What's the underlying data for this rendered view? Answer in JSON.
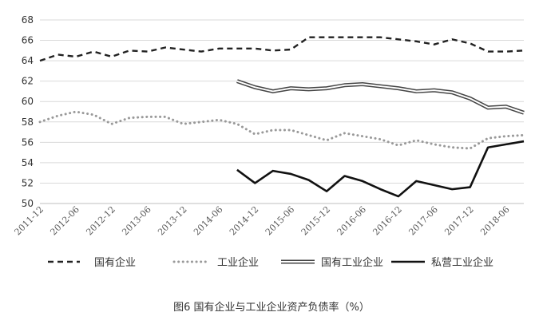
{
  "chart_data": {
    "type": "line",
    "title": "",
    "caption": "图6  国有企业与工业企业资产负债率（%）",
    "xlabel": "",
    "ylabel": "",
    "ylim": [
      50,
      68
    ],
    "yticks": [
      "50",
      "52",
      "54",
      "56",
      "58",
      "60",
      "62",
      "64",
      "66",
      "68"
    ],
    "x": [
      "2011-12",
      "2012-03",
      "2012-06",
      "2012-09",
      "2012-12",
      "2013-03",
      "2013-06",
      "2013-09",
      "2013-12",
      "2014-03",
      "2014-06",
      "2014-09",
      "2014-12",
      "2015-03",
      "2015-06",
      "2015-09",
      "2015-12",
      "2016-03",
      "2016-06",
      "2016-09",
      "2016-12",
      "2017-03",
      "2017-06",
      "2017-09",
      "2017-12",
      "2018-03",
      "2018-06",
      "2018-09"
    ],
    "xtick_labels": [
      "2011-12",
      "2012-06",
      "2012-12",
      "2013-06",
      "2013-12",
      "2014-06",
      "2014-12",
      "2015-06",
      "2015-12",
      "2016-06",
      "2016-12",
      "2017-06",
      "2017-12",
      "2018-06"
    ],
    "grid": true,
    "legend": "bottom",
    "series": [
      {
        "name": "国有企业",
        "style": "dashed",
        "color": "#222222",
        "values": [
          64.0,
          64.6,
          64.4,
          64.9,
          64.4,
          65.0,
          64.9,
          65.3,
          65.1,
          64.9,
          65.2,
          65.2,
          65.2,
          65.0,
          65.1,
          66.3,
          66.3,
          66.3,
          66.3,
          66.3,
          66.1,
          65.9,
          65.6,
          66.1,
          65.7,
          64.9,
          64.9,
          65.0
        ]
      },
      {
        "name": "工业企业",
        "style": "dotted",
        "color": "#999999",
        "values": [
          58.0,
          58.6,
          59.0,
          58.7,
          57.8,
          58.4,
          58.5,
          58.5,
          57.8,
          58.0,
          58.2,
          57.8,
          56.8,
          57.2,
          57.2,
          56.7,
          56.2,
          56.9,
          56.6,
          56.3,
          55.7,
          56.2,
          55.8,
          55.5,
          55.4,
          56.4,
          56.6,
          56.7
        ]
      },
      {
        "name": "国有工业企业",
        "style": "double",
        "color": "#444444",
        "values": [
          null,
          null,
          null,
          null,
          null,
          null,
          null,
          null,
          null,
          null,
          null,
          62.0,
          61.4,
          61.0,
          61.3,
          61.2,
          61.3,
          61.6,
          61.7,
          61.5,
          61.3,
          61.0,
          61.1,
          60.9,
          60.3,
          59.4,
          59.5,
          58.9
        ]
      },
      {
        "name": "私营工业企业",
        "style": "solid",
        "color": "#111111",
        "values": [
          null,
          null,
          null,
          null,
          null,
          null,
          null,
          null,
          null,
          null,
          null,
          53.3,
          52.0,
          53.2,
          52.9,
          52.3,
          51.2,
          52.7,
          52.2,
          51.4,
          50.7,
          52.2,
          51.8,
          51.4,
          51.6,
          55.5,
          55.8,
          56.1
        ]
      }
    ]
  }
}
